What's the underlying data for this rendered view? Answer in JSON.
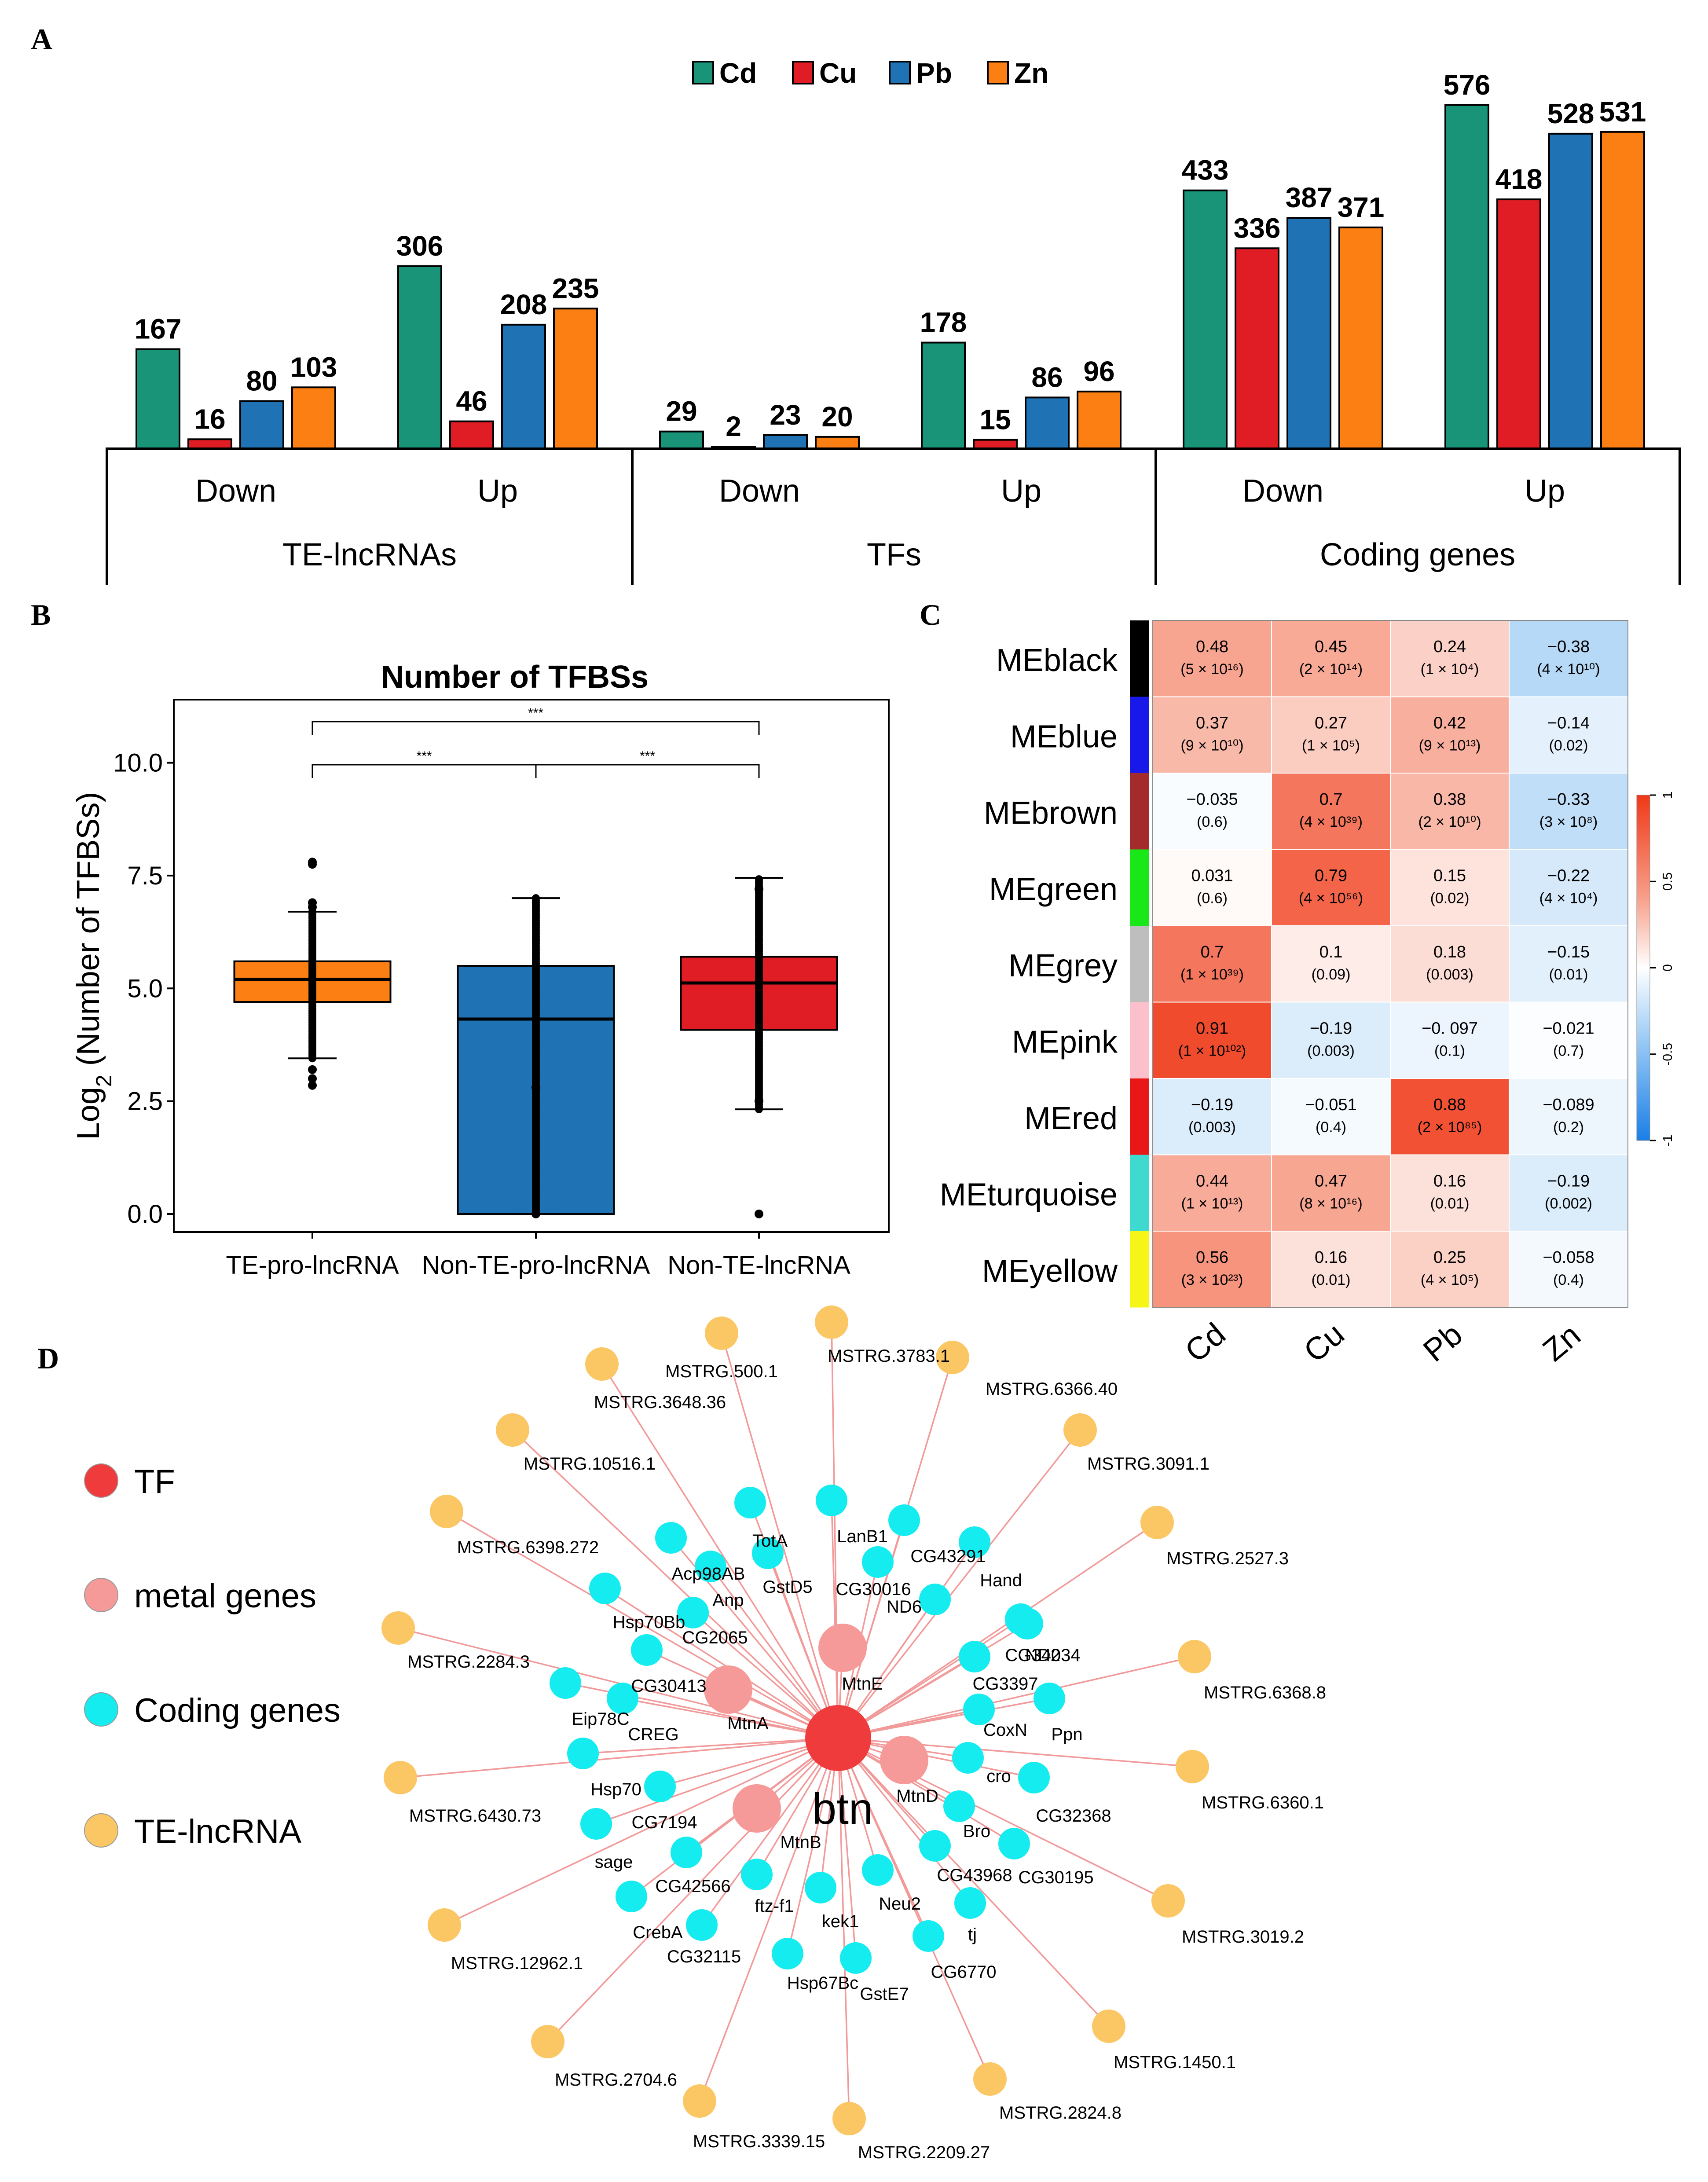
{
  "panels": {
    "a": "A",
    "b": "B",
    "c": "C",
    "d": "D"
  },
  "colors": {
    "Cd": "#1a9478",
    "Cu": "#e01d25",
    "Pb": "#1f72b4",
    "Zn": "#fb7f12",
    "box_te": "#fb7f12",
    "box_nontepro": "#1f72b4",
    "box_nonte": "#e01d25",
    "tf": "#f03b3d",
    "metal": "#f59a98",
    "coding": "#14ecf0",
    "te_lnc": "#fbc765",
    "edge": "#f29a9a"
  },
  "chart_data": [
    {
      "type": "bar",
      "panel": "A",
      "legend": [
        "Cd",
        "Cu",
        "Pb",
        "Zn"
      ],
      "groups": [
        {
          "top": "Down",
          "bottom": "TE-lncRNAs",
          "values": [
            167,
            16,
            80,
            103
          ]
        },
        {
          "top": "Up",
          "bottom": "TE-lncRNAs",
          "values": [
            306,
            46,
            208,
            235
          ]
        },
        {
          "top": "Down",
          "bottom": "TFs",
          "values": [
            29,
            2,
            23,
            20
          ]
        },
        {
          "top": "Up",
          "bottom": "TFs",
          "values": [
            178,
            15,
            86,
            96
          ]
        },
        {
          "top": "Down",
          "bottom": "Coding genes",
          "values": [
            433,
            336,
            387,
            371
          ]
        },
        {
          "top": "Up",
          "bottom": "Coding genes",
          "values": [
            576,
            418,
            528,
            531
          ]
        }
      ],
      "categories_top": [
        "Down",
        "Up",
        "Down",
        "Up",
        "Down",
        "Up"
      ],
      "categories_bottom": [
        "TE-lncRNAs",
        "TFs",
        "Coding genes"
      ],
      "ylim": [
        0,
        600
      ]
    },
    {
      "type": "box",
      "panel": "B",
      "title": "Number of TFBSs",
      "ylabel_prefix": "Log",
      "ylabel_sub": "2",
      "ylabel_suffix": " (Number of TFBSs)",
      "ylim": [
        -0.4,
        11.4
      ],
      "yticks": [
        "0.0",
        "2.5",
        "5.0",
        "7.5",
        "10.0"
      ],
      "ytick_values": [
        0,
        2.5,
        5,
        7.5,
        10
      ],
      "categories": [
        "TE-pro-lncRNA",
        "Non-TE-pro-lncRNA",
        "Non-TE-lncRNA"
      ],
      "boxes": [
        {
          "q1": 4.7,
          "median": 5.2,
          "q3": 5.6,
          "wlo": 3.45,
          "whi": 6.7,
          "outliers": [
            7.8,
            7.75,
            2.85,
            3.0,
            3.2,
            6.8,
            6.9
          ]
        },
        {
          "q1": 0.0,
          "median": 4.32,
          "q3": 5.5,
          "wlo": 0.0,
          "whi": 7.0,
          "outliers": [
            2.8,
            0.0
          ]
        },
        {
          "q1": 4.08,
          "median": 5.12,
          "q3": 5.7,
          "wlo": 2.32,
          "whi": 7.45,
          "outliers": [
            0.0,
            7.2,
            2.5
          ]
        }
      ],
      "significance": [
        "***",
        "***",
        "***"
      ]
    },
    {
      "type": "heatmap",
      "panel": "C",
      "columns": [
        "Cd",
        "Cu",
        "Pb",
        "Zn"
      ],
      "rows": [
        "MEblack",
        "MEblue",
        "MEbrown",
        "MEgreen",
        "MEgrey",
        "MEpink",
        "MEred",
        "MEturquoise",
        "MEyellow"
      ],
      "row_colors": [
        "#000000",
        "#1818e8",
        "#a32b2b",
        "#18e818",
        "#bebebe",
        "#fbc0cb",
        "#e81818",
        "#3fd9cf",
        "#f5f518"
      ],
      "values": [
        [
          0.48,
          0.45,
          0.24,
          -0.38
        ],
        [
          0.37,
          0.27,
          0.42,
          -0.14
        ],
        [
          -0.035,
          0.7,
          0.38,
          -0.33
        ],
        [
          0.031,
          0.79,
          0.15,
          -0.22
        ],
        [
          0.7,
          0.1,
          0.18,
          -0.15
        ],
        [
          0.91,
          -0.19,
          -0.097,
          -0.021
        ],
        [
          -0.19,
          -0.051,
          0.88,
          -0.089
        ],
        [
          0.44,
          0.47,
          0.16,
          -0.19
        ],
        [
          0.56,
          0.16,
          0.25,
          -0.058
        ]
      ],
      "labels": [
        [
          "0.48",
          "0.45",
          "0.24",
          "−0.38"
        ],
        [
          "0.37",
          "0.27",
          "0.42",
          "−0.14"
        ],
        [
          "−0.035",
          "0.7",
          "0.38",
          "−0.33"
        ],
        [
          "0.031",
          "0.79",
          "0.15",
          "−0.22"
        ],
        [
          "0.7",
          "0.1",
          "0.18",
          "−0.15"
        ],
        [
          "0.91",
          "−0.19",
          "−0. 097",
          "−0.021"
        ],
        [
          "−0.19",
          "−0.051",
          "0.88",
          "−0.089"
        ],
        [
          "0.44",
          "0.47",
          "0.16",
          "−0.19"
        ],
        [
          "0.56",
          "0.16",
          "0.25",
          "−0.058"
        ]
      ],
      "pvalues": [
        [
          "(5 × 10¹⁶)",
          "(2 × 10¹⁴)",
          "(1 × 10⁴)",
          "(4 × 10¹⁰)"
        ],
        [
          "(9 × 10¹⁰)",
          "(1 × 10⁵)",
          "(9 × 10¹³)",
          "(0.02)"
        ],
        [
          "(0.6)",
          "(4 × 10³⁹)",
          "(2 × 10¹⁰)",
          "(3 × 10⁸)"
        ],
        [
          "(0.6)",
          "(4 × 10⁵⁶)",
          "(0.02)",
          "(4 × 10⁴)"
        ],
        [
          "(1 × 10³⁹)",
          "(0.09)",
          "(0.003)",
          "(0.01)"
        ],
        [
          "(1 × 10¹⁰²)",
          "(0.003)",
          "(0.1)",
          "(0.7)"
        ],
        [
          "(0.003)",
          "(0.4)",
          "(2 × 10⁸⁵)",
          "(0.2)"
        ],
        [
          "(1 × 10¹³)",
          "(8 × 10¹⁶)",
          "(0.01)",
          "(0.002)"
        ],
        [
          "(3 × 10²³)",
          "(0.01)",
          "(4 × 10⁵)",
          "(0.4)"
        ]
      ],
      "colorbar_ticks": [
        "1",
        "0.5",
        "0",
        "-0.5",
        "-1"
      ],
      "colorbar_values": [
        1,
        0.5,
        0,
        -0.5,
        -1
      ]
    }
  ],
  "network": {
    "legend": [
      {
        "key": "tf",
        "label": "TF"
      },
      {
        "key": "metal",
        "label": "metal genes"
      },
      {
        "key": "coding",
        "label": "Coding genes"
      },
      {
        "key": "te_lnc",
        "label": "TE-lncRNA"
      }
    ],
    "center": {
      "label": "btn"
    },
    "metal": [
      "MtnA",
      "MtnE",
      "MtnD",
      "MtnB"
    ],
    "coding": [
      "TotA",
      "LanB1",
      "CG43291",
      "Acp98AB",
      "GstD5",
      "CG30016",
      "Anp",
      "ND6",
      "Hand",
      "Hsp70Bb",
      "CG2065",
      "CG34034",
      "ND2",
      "CG30413",
      "CG3397",
      "Eip78C",
      "CREG",
      "CoxN",
      "Ppn",
      "Hsp70",
      "cro",
      "CG32368",
      "CG7194",
      "Bro",
      "CG30195",
      "sage",
      "CG43968",
      "CG42566",
      "ftz-f1",
      "kek1",
      "Neu2",
      "CrebA",
      "tj",
      "CG32115",
      "Hsp67Bc",
      "GstE7",
      "CG6770"
    ],
    "te": [
      "MSTRG.500.1",
      "MSTRG.3783.1",
      "MSTRG.3648.36",
      "MSTRG.6366.40",
      "MSTRG.10516.1",
      "MSTRG.3091.1",
      "MSTRG.6398.272",
      "MSTRG.2527.3",
      "MSTRG.2284.3",
      "MSTRG.6368.8",
      "MSTRG.6430.73",
      "MSTRG.6360.1",
      "MSTRG.12962.1",
      "MSTRG.3019.2",
      "MSTRG.2704.6",
      "MSTRG.1450.1",
      "MSTRG.3339.15",
      "MSTRG.2209.27",
      "MSTRG.2824.8"
    ]
  }
}
